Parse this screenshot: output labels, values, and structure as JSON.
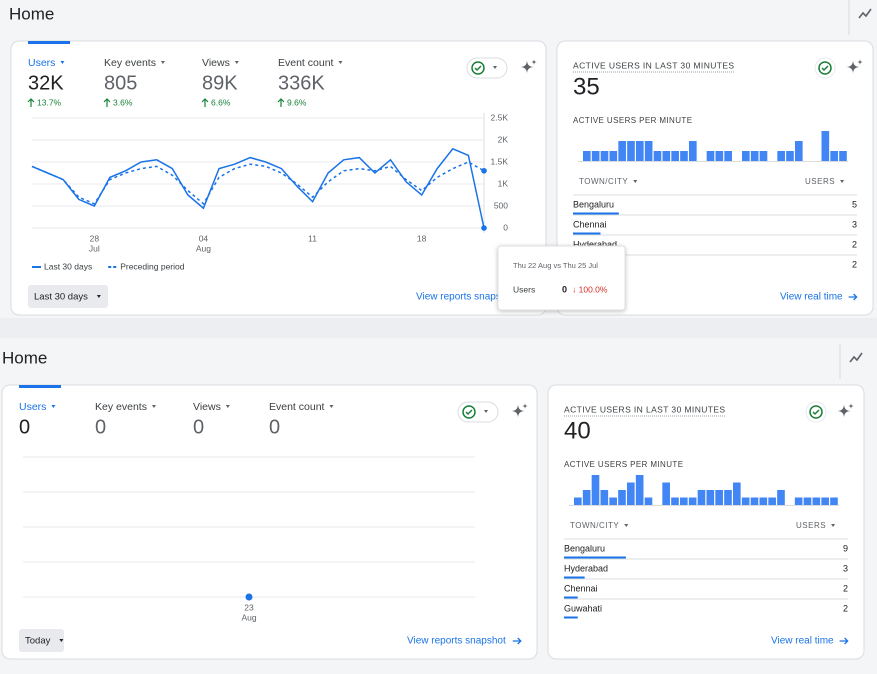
{
  "panels": [
    {
      "header": "Home",
      "metrics": [
        {
          "label": "Users",
          "value": "32K",
          "change": "13.7%"
        },
        {
          "label": "Key events",
          "value": "805",
          "change": "3.6%"
        },
        {
          "label": "Views",
          "value": "89K",
          "change": "6.6%"
        },
        {
          "label": "Event count",
          "value": "336K",
          "change": "9.6%"
        }
      ],
      "chart_data": {
        "type": "line",
        "categories": [
          null,
          null,
          null,
          null,
          "28",
          null,
          null,
          null,
          null,
          null,
          null,
          "04",
          null,
          null,
          null,
          null,
          null,
          null,
          "11",
          null,
          null,
          null,
          null,
          null,
          null,
          "18",
          null,
          null,
          null,
          null
        ],
        "category_months": [
          null,
          null,
          null,
          null,
          "Jul",
          null,
          null,
          null,
          null,
          null,
          null,
          "Aug",
          null,
          null,
          null,
          null,
          null,
          null,
          null,
          null,
          null,
          null,
          null,
          null,
          null,
          null,
          null,
          null,
          null,
          null
        ],
        "series": [
          {
            "name": "Last 30 days",
            "color": "#1a73e8",
            "dashed": false,
            "values": [
              1400,
              1250,
              1100,
              650,
              500,
              1150,
              1300,
              1500,
              1550,
              1350,
              750,
              450,
              1350,
              1450,
              1600,
              1500,
              1350,
              950,
              600,
              1250,
              1550,
              1600,
              1250,
              1550,
              1050,
              750,
              1350,
              1800,
              1650,
              0
            ]
          },
          {
            "name": "Preceding period",
            "color": "#1a73e8",
            "dashed": true,
            "values": [
              1400,
              1250,
              1100,
              700,
              550,
              1100,
              1250,
              1350,
              1400,
              1200,
              850,
              550,
              1150,
              1350,
              1450,
              1400,
              1250,
              1000,
              700,
              1050,
              1300,
              1350,
              1300,
              1400,
              1100,
              850,
              1150,
              1350,
              1500,
              1300
            ]
          }
        ],
        "ylim": [
          0,
          2500
        ],
        "yticks": [
          0,
          500,
          {
            "value": 1000,
            "label": "1K"
          },
          {
            "value": 1500,
            "label": "1.5K"
          },
          {
            "value": 2000,
            "label": "2K"
          },
          {
            "value": 2500,
            "label": "2.5K"
          }
        ],
        "grid": true
      },
      "date_range": "Last 30 days",
      "link": "View reports snapshot",
      "tooltip": {
        "title": "Thu 22 Aug vs Thu 25 Jul",
        "metric": "Users",
        "value": "0",
        "change": "↓ 100.0%"
      },
      "realtime": {
        "title": "ACTIVE USERS IN LAST 30 MINUTES",
        "count": "35",
        "subtitle": "ACTIVE USERS PER MINUTE",
        "chart_data": {
          "type": "bar",
          "color": "#4285f4",
          "ylim": [
            0,
            3
          ],
          "values": [
            1,
            1,
            1,
            1,
            2,
            2,
            2,
            2,
            1,
            1,
            1,
            1,
            2,
            0,
            1,
            1,
            1,
            0,
            1,
            1,
            1,
            0,
            1,
            1,
            2,
            0,
            0,
            3,
            1,
            1
          ]
        },
        "columns": [
          "TOWN/CITY",
          "USERS"
        ],
        "rows": [
          {
            "city": "Bengaluru",
            "users": 5
          },
          {
            "city": "Chennai",
            "users": 3
          },
          {
            "city": "Hyderabad",
            "users": 2
          },
          {
            "city": null,
            "users": 2
          }
        ],
        "link": "View real time"
      }
    },
    {
      "header": "Home",
      "metrics": [
        {
          "label": "Users",
          "value": "0"
        },
        {
          "label": "Key events",
          "value": "0"
        },
        {
          "label": "Views",
          "value": "0"
        },
        {
          "label": "Event count",
          "value": "0"
        }
      ],
      "chart_data": {
        "type": "line",
        "categories": [
          "23"
        ],
        "category_months": [
          "Aug"
        ],
        "values": [
          0
        ],
        "color": "#1a73e8",
        "ylim": [
          0,
          4
        ],
        "grid": true
      },
      "date_range": "Today",
      "link": "View reports snapshot",
      "realtime": {
        "title": "ACTIVE USERS IN LAST 30 MINUTES",
        "count": "40",
        "subtitle": "ACTIVE USERS PER MINUTE",
        "chart_data": {
          "type": "bar",
          "color": "#4285f4",
          "ylim": [
            0,
            4
          ],
          "values": [
            1,
            2,
            4,
            2,
            1,
            2,
            3,
            4,
            1,
            0,
            3,
            1,
            1,
            1,
            2,
            2,
            2,
            2,
            3,
            1,
            1,
            1,
            1,
            2,
            0,
            1,
            1,
            1,
            1,
            1
          ]
        },
        "columns": [
          "TOWN/CITY",
          "USERS"
        ],
        "rows": [
          {
            "city": "Bengaluru",
            "users": 9
          },
          {
            "city": "Hyderabad",
            "users": 3
          },
          {
            "city": "Chennai",
            "users": 2
          },
          {
            "city": "Guwahati",
            "users": 2
          }
        ],
        "link": "View real time"
      }
    }
  ]
}
